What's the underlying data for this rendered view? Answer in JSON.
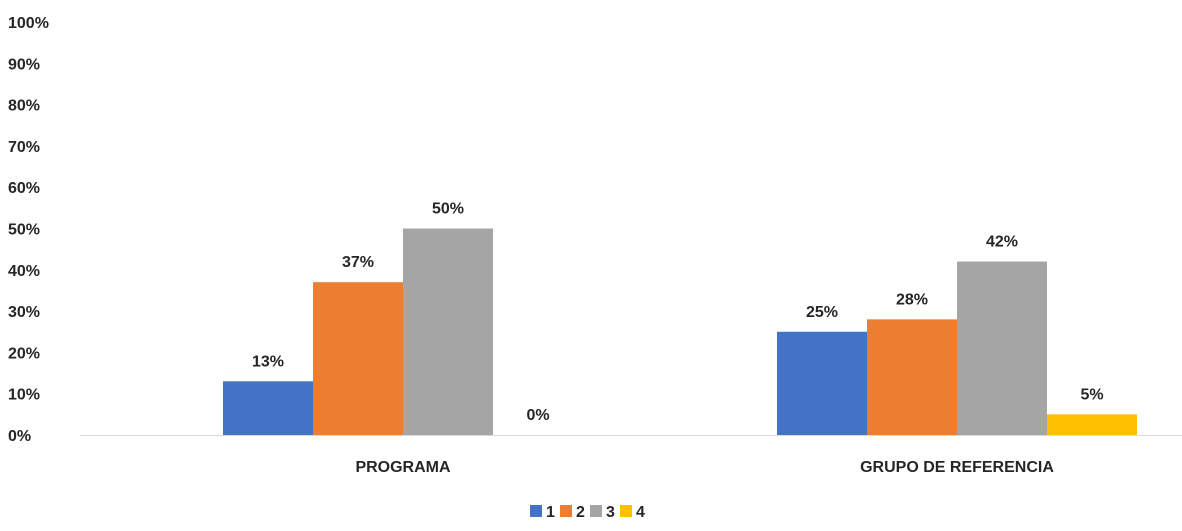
{
  "chart_data": {
    "type": "bar",
    "title": "",
    "xlabel": "",
    "ylabel": "",
    "categories": [
      "PROGRAMA",
      "GRUPO DE REFERENCIA"
    ],
    "series": [
      {
        "name": "1",
        "values": [
          13,
          25
        ],
        "labels": [
          "13%",
          "25%"
        ],
        "color": "#4472C4"
      },
      {
        "name": "2",
        "values": [
          37,
          28
        ],
        "labels": [
          "37%",
          "28%"
        ],
        "color": "#ED7D31"
      },
      {
        "name": "3",
        "values": [
          50,
          42
        ],
        "labels": [
          "50%",
          "42%"
        ],
        "color": "#A5A5A5"
      },
      {
        "name": "4",
        "values": [
          0,
          5
        ],
        "labels": [
          "0%",
          "5%"
        ],
        "color": "#FFC000"
      }
    ],
    "ylim": [
      0,
      100
    ],
    "yticks": [
      "0%",
      "10%",
      "20%",
      "30%",
      "40%",
      "50%",
      "60%",
      "70%",
      "80%",
      "90%",
      "100%"
    ],
    "grid": false,
    "legend_position": "bottom"
  }
}
